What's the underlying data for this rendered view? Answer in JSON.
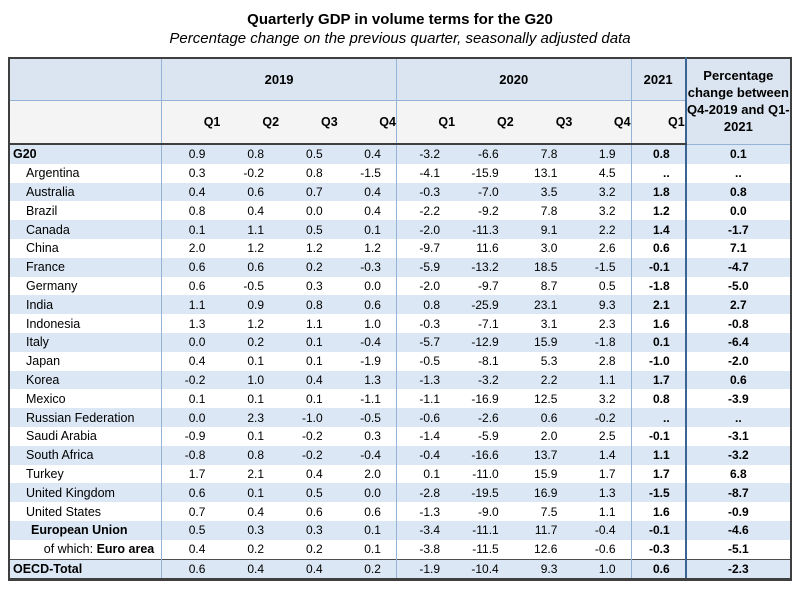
{
  "chart_data": {
    "type": "table",
    "title": "Quarterly GDP in volume terms for the G20",
    "subtitle": "Percentage change on the previous quarter, seasonally adjusted data",
    "year_groups": [
      {
        "label": "2019",
        "span": 4
      },
      {
        "label": "2020",
        "span": 4
      },
      {
        "label": "2021",
        "span": 1
      }
    ],
    "quarter_headers": [
      "Q1",
      "Q2",
      "Q3",
      "Q4",
      "Q1",
      "Q2",
      "Q3",
      "Q4",
      "Q1"
    ],
    "pct_header": "Percentage change between Q4-2019 and Q1-2021",
    "missing_value_symbol": "..",
    "rows": [
      {
        "name": "G20",
        "style": "group",
        "values": [
          "0.9",
          "0.8",
          "0.5",
          "0.4",
          "-3.2",
          "-6.6",
          "7.8",
          "1.9",
          "0.8"
        ],
        "pct": "0.1"
      },
      {
        "name": "Argentina",
        "style": "country",
        "values": [
          "0.3",
          "-0.2",
          "0.8",
          "-1.5",
          "-4.1",
          "-15.9",
          "13.1",
          "4.5",
          ".."
        ],
        "pct": ".."
      },
      {
        "name": "Australia",
        "style": "country",
        "values": [
          "0.4",
          "0.6",
          "0.7",
          "0.4",
          "-0.3",
          "-7.0",
          "3.5",
          "3.2",
          "1.8"
        ],
        "pct": "0.8"
      },
      {
        "name": "Brazil",
        "style": "country",
        "values": [
          "0.8",
          "0.4",
          "0.0",
          "0.4",
          "-2.2",
          "-9.2",
          "7.8",
          "3.2",
          "1.2"
        ],
        "pct": "0.0"
      },
      {
        "name": "Canada",
        "style": "country",
        "values": [
          "0.1",
          "1.1",
          "0.5",
          "0.1",
          "-2.0",
          "-11.3",
          "9.1",
          "2.2",
          "1.4"
        ],
        "pct": "-1.7"
      },
      {
        "name": "China",
        "style": "country",
        "values": [
          "2.0",
          "1.2",
          "1.2",
          "1.2",
          "-9.7",
          "11.6",
          "3.0",
          "2.6",
          "0.6"
        ],
        "pct": "7.1"
      },
      {
        "name": "France",
        "style": "country",
        "values": [
          "0.6",
          "0.6",
          "0.2",
          "-0.3",
          "-5.9",
          "-13.2",
          "18.5",
          "-1.5",
          "-0.1"
        ],
        "pct": "-4.7"
      },
      {
        "name": "Germany",
        "style": "country",
        "values": [
          "0.6",
          "-0.5",
          "0.3",
          "0.0",
          "-2.0",
          "-9.7",
          "8.7",
          "0.5",
          "-1.8"
        ],
        "pct": "-5.0"
      },
      {
        "name": "India",
        "style": "country",
        "values": [
          "1.1",
          "0.9",
          "0.8",
          "0.6",
          "0.8",
          "-25.9",
          "23.1",
          "9.3",
          "2.1"
        ],
        "pct": "2.7"
      },
      {
        "name": "Indonesia",
        "style": "country",
        "values": [
          "1.3",
          "1.2",
          "1.1",
          "1.0",
          "-0.3",
          "-7.1",
          "3.1",
          "2.3",
          "1.6"
        ],
        "pct": "-0.8"
      },
      {
        "name": "Italy",
        "style": "country",
        "values": [
          "0.0",
          "0.2",
          "0.1",
          "-0.4",
          "-5.7",
          "-12.9",
          "15.9",
          "-1.8",
          "0.1"
        ],
        "pct": "-6.4"
      },
      {
        "name": "Japan",
        "style": "country",
        "values": [
          "0.4",
          "0.1",
          "0.1",
          "-1.9",
          "-0.5",
          "-8.1",
          "5.3",
          "2.8",
          "-1.0"
        ],
        "pct": "-2.0"
      },
      {
        "name": "Korea",
        "style": "country",
        "values": [
          "-0.2",
          "1.0",
          "0.4",
          "1.3",
          "-1.3",
          "-3.2",
          "2.2",
          "1.1",
          "1.7"
        ],
        "pct": "0.6"
      },
      {
        "name": "Mexico",
        "style": "country",
        "values": [
          "0.1",
          "0.1",
          "0.1",
          "-1.1",
          "-1.1",
          "-16.9",
          "12.5",
          "3.2",
          "0.8"
        ],
        "pct": "-3.9"
      },
      {
        "name": "Russian Federation",
        "style": "country",
        "values": [
          "0.0",
          "2.3",
          "-1.0",
          "-0.5",
          "-0.6",
          "-2.6",
          "0.6",
          "-0.2",
          ".."
        ],
        "pct": ".."
      },
      {
        "name": "Saudi Arabia",
        "style": "country",
        "values": [
          "-0.9",
          "0.1",
          "-0.2",
          "0.3",
          "-1.4",
          "-5.9",
          "2.0",
          "2.5",
          "-0.1"
        ],
        "pct": "-3.1"
      },
      {
        "name": "South Africa",
        "style": "country",
        "values": [
          "-0.8",
          "0.8",
          "-0.2",
          "-0.4",
          "-0.4",
          "-16.6",
          "13.7",
          "1.4",
          "1.1"
        ],
        "pct": "-3.2"
      },
      {
        "name": "Turkey",
        "style": "country",
        "values": [
          "1.7",
          "2.1",
          "0.4",
          "2.0",
          "0.1",
          "-11.0",
          "15.9",
          "1.7",
          "1.7"
        ],
        "pct": "6.8"
      },
      {
        "name": "United Kingdom",
        "style": "country",
        "values": [
          "0.6",
          "0.1",
          "0.5",
          "0.0",
          "-2.8",
          "-19.5",
          "16.9",
          "1.3",
          "-1.5"
        ],
        "pct": "-8.7"
      },
      {
        "name": "United States",
        "style": "country",
        "values": [
          "0.7",
          "0.4",
          "0.6",
          "0.6",
          "-1.3",
          "-9.0",
          "7.5",
          "1.1",
          "1.6"
        ],
        "pct": "-0.9"
      },
      {
        "name": "European Union",
        "style": "eu",
        "values": [
          "0.5",
          "0.3",
          "0.3",
          "0.1",
          "-3.4",
          "-11.1",
          "11.7",
          "-0.4",
          "-0.1"
        ],
        "pct": "-4.6"
      },
      {
        "name": "Euro area",
        "prefix": "of which: ",
        "style": "euro",
        "values": [
          "0.4",
          "0.2",
          "0.2",
          "0.1",
          "-3.8",
          "-11.5",
          "12.6",
          "-0.6",
          "-0.3"
        ],
        "pct": "-5.1"
      },
      {
        "name": "OECD-Total",
        "style": "total",
        "values": [
          "0.6",
          "0.4",
          "0.4",
          "0.2",
          "-1.9",
          "-10.4",
          "9.3",
          "1.0",
          "0.6"
        ],
        "pct": "-2.3"
      }
    ]
  },
  "colors": {
    "stripe_blue": "#dbe7f4",
    "header_year_bg": "#dbe5f1",
    "header_q_bg": "#f4f4f4",
    "grid_blue": "#95b3d7",
    "strong_blue": "#3a6494",
    "dark_border": "#3f3f3f",
    "text": "#000000"
  }
}
